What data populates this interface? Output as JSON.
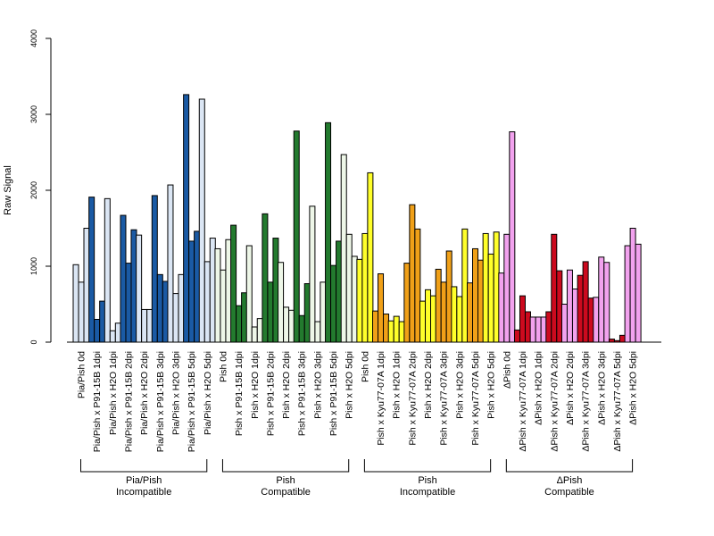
{
  "chart_data": {
    "type": "bar",
    "title": "",
    "xlabel": "",
    "ylabel": "Raw Signal",
    "ylim": [
      0,
      4000
    ],
    "yticks": [
      0,
      1000,
      2000,
      3000,
      4000
    ],
    "legend": "none",
    "grid": false,
    "categories": [
      "Pia/Pish 0d",
      "Pia/Pish x P91-15B 1dpi",
      "Pia/Pish x H2O 1dpi",
      "Pia/Pish x P91-15B 2dpi",
      "Pia/Pish x H2O 2dpi",
      "Pia/Pish x P91-15B 3dpi",
      "Pia/Pish x H2O 3dpi",
      "Pia/Pish x P91-15B 5dpi",
      "Pia/Pish x H2O 5dpi",
      "Pish 0d",
      "Pish x P91-15B 1dpi",
      "Pish x H2O 1dpi",
      "Pish x P91-15B 2dpi",
      "Pish x H2O 2dpi",
      "Pish x P91-15B 3dpi",
      "Pish x H2O 3dpi",
      "Pish x P91-15B 5dpi",
      "Pish x H2O 5dpi",
      "Pish 0d",
      "Pish x Kyu77-07A 1dpi",
      "Pish x H2O 1dpi",
      "Pish x Kyu77-07A 2dpi",
      "Pish x H2O 2dpi",
      "Pish x Kyu77-07A 3dpi",
      "Pish x H2O 3dpi",
      "Pish x Kyu77-07A 5dpi",
      "Pish x H2O 5dpi",
      "ΔPish 0d",
      "ΔPish x Kyu77-07A 1dpi",
      "ΔPish x H2O 1dpi",
      "ΔPish x Kyu77-07A 2dpi",
      "ΔPish x H2O 2dpi",
      "ΔPish x Kyu77-07A 3dpi",
      "ΔPish x H2O 3dpi",
      "ΔPish x Kyu77-07A 5dpi",
      "ΔPish x H2O 5dpi"
    ],
    "bar_colors": [
      "#dbe6f4",
      "#1a5aa4",
      "#dbe6f4",
      "#1a5aa4",
      "#dbe6f4",
      "#1a5aa4",
      "#dbe6f4",
      "#1a5aa4",
      "#dbe6f4",
      "#eef7e8",
      "#237a2e",
      "#eef7e8",
      "#237a2e",
      "#eef7e8",
      "#237a2e",
      "#eef7e8",
      "#237a2e",
      "#eef7e8",
      "#ffff2a",
      "#f0a018",
      "#ffff2a",
      "#f0a018",
      "#ffff2a",
      "#f0a018",
      "#ffff2a",
      "#f0a018",
      "#ffff2a",
      "#f2a2ee",
      "#cc0a1e",
      "#f2a2ee",
      "#cc0a1e",
      "#f2a2ee",
      "#cc0a1e",
      "#f2a2ee",
      "#cc0a1e",
      "#f2a2ee"
    ],
    "values": [
      [
        1020,
        790,
        1500
      ],
      [
        1910,
        300,
        540
      ],
      [
        1890,
        150,
        250
      ],
      [
        1670,
        1040,
        1480
      ],
      [
        1410,
        430,
        430
      ],
      [
        1930,
        890,
        800
      ],
      [
        2070,
        640,
        890
      ],
      [
        3260,
        1330,
        1460
      ],
      [
        3200,
        1060,
        1370
      ],
      [
        1230,
        950,
        1350
      ],
      [
        1540,
        480,
        650
      ],
      [
        1270,
        200,
        310
      ],
      [
        1690,
        790,
        1370
      ],
      [
        1050,
        460,
        420
      ],
      [
        2780,
        350,
        770
      ],
      [
        1790,
        270,
        790
      ],
      [
        2890,
        1010,
        1330
      ],
      [
        2470,
        1420,
        1130
      ],
      [
        1090,
        1430,
        2230
      ],
      [
        410,
        900,
        370
      ],
      [
        280,
        340,
        270
      ],
      [
        1040,
        1810,
        1490
      ],
      [
        540,
        690,
        610
      ],
      [
        960,
        790,
        1200
      ],
      [
        730,
        600,
        1490
      ],
      [
        780,
        1230,
        1080
      ],
      [
        1430,
        1160,
        1450
      ],
      [
        910,
        1420,
        2770
      ],
      [
        160,
        610,
        400
      ],
      [
        330,
        330,
        330
      ],
      [
        400,
        1420,
        940
      ],
      [
        500,
        950,
        700
      ],
      [
        880,
        1060,
        580
      ],
      [
        590,
        1120,
        1050
      ],
      [
        40,
        20,
        90
      ],
      [
        1270,
        1500,
        1290
      ]
    ],
    "groups": [
      {
        "name_line1": "Pia/Pish",
        "name_line2": "Incompatible",
        "start": 0,
        "end": 8
      },
      {
        "name_line1": "Pish",
        "name_line2": "Compatible",
        "start": 9,
        "end": 17
      },
      {
        "name_line1": "Pish",
        "name_line2": "Incompatible",
        "start": 18,
        "end": 26
      },
      {
        "name_line1": "ΔPish",
        "name_line2": "Compatible",
        "start": 27,
        "end": 35
      }
    ]
  }
}
